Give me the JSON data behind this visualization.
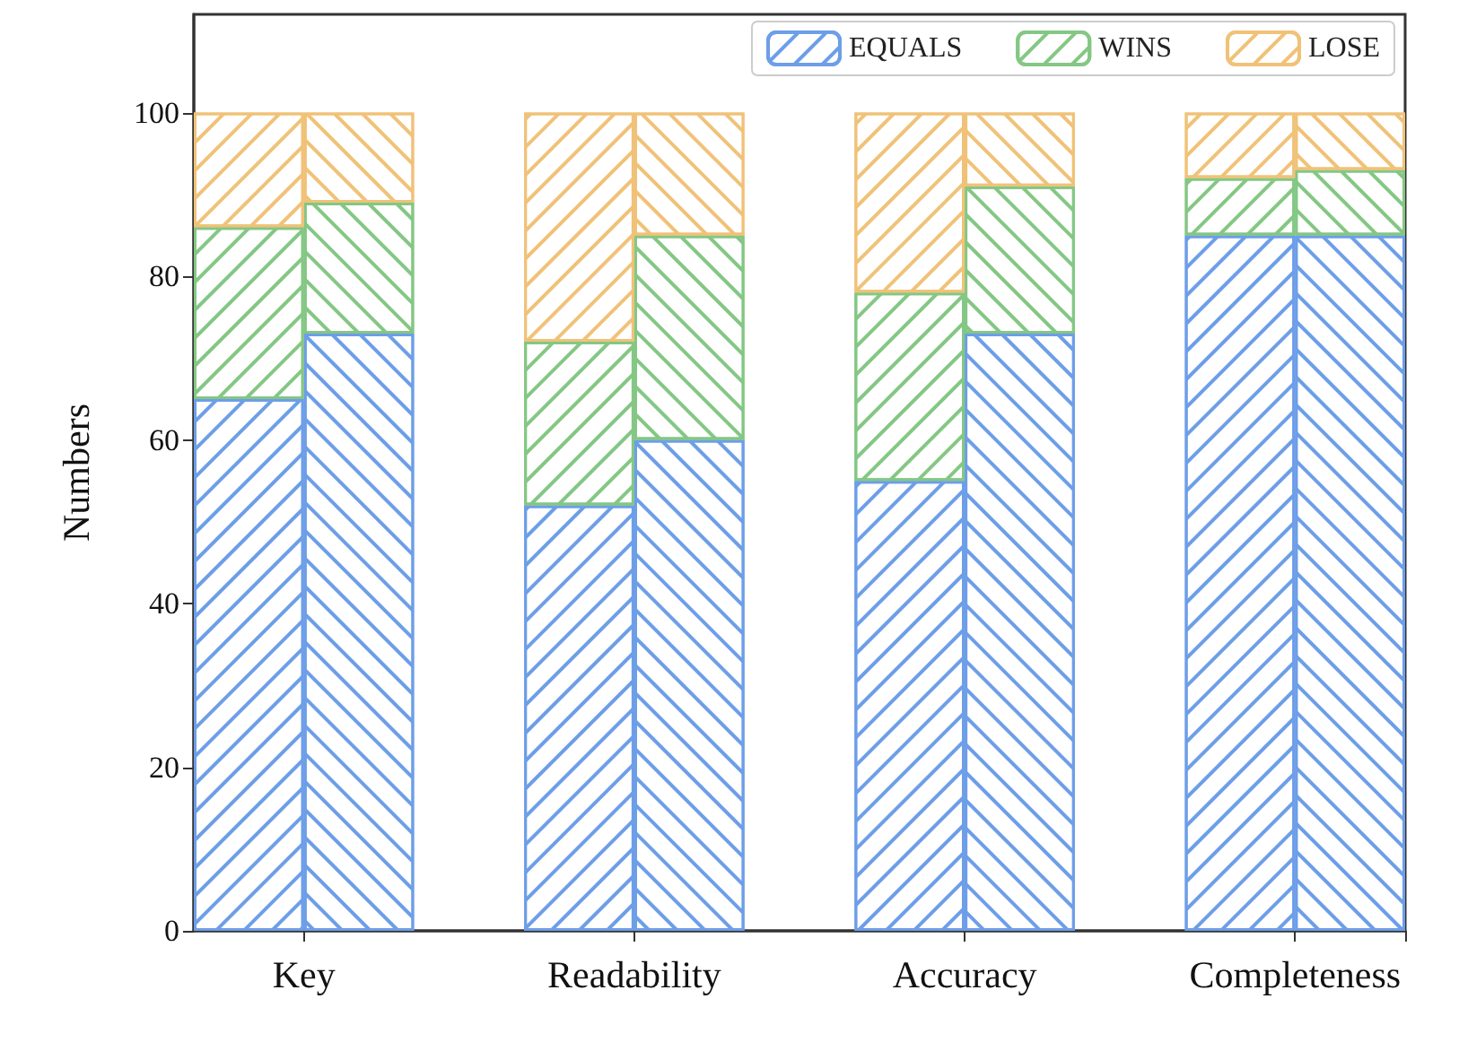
{
  "chart_data": {
    "type": "bar",
    "stacked": true,
    "ylabel": "Numbers",
    "categories": [
      "Key",
      null,
      null,
      "Readability",
      null,
      null,
      "Accuracy",
      null,
      null,
      "Completeness",
      null
    ],
    "series": [
      {
        "name": "EQUALS",
        "color": "#6d9ee8",
        "values": [
          65,
          73,
          null,
          52,
          60,
          null,
          55,
          73,
          null,
          85,
          85
        ]
      },
      {
        "name": "WINS",
        "color": "#84c784",
        "values": [
          21,
          16,
          null,
          20,
          25,
          null,
          23,
          18,
          null,
          7,
          8
        ]
      },
      {
        "name": "LOSE",
        "color": "#f0c278",
        "values": [
          14,
          11,
          null,
          28,
          15,
          null,
          22,
          9,
          null,
          8,
          7
        ]
      }
    ],
    "ylim": [
      0,
      112
    ],
    "yticks": [
      0,
      20,
      40,
      60,
      80,
      100
    ],
    "grid": false,
    "legend": "top right"
  }
}
